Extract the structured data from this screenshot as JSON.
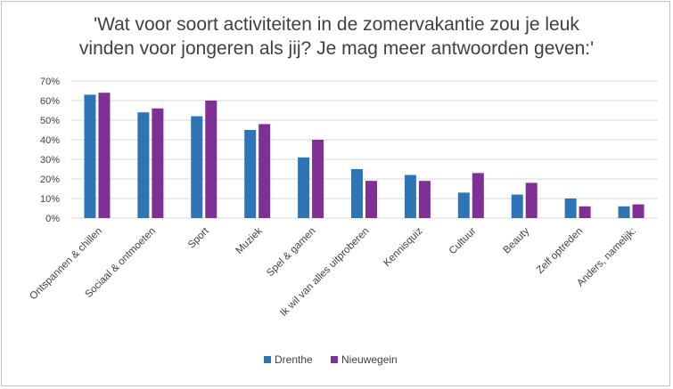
{
  "chart_data": {
    "type": "bar",
    "title_lines": [
      "'Wat voor soort activiteiten in de zomervakantie zou je leuk",
      "vinden voor jongeren als jij? Je mag meer antwoorden geven:'"
    ],
    "categories": [
      "Ontspannen & chillen",
      "Sociaal & ontmoeten",
      "Sport",
      "Muziek",
      "Spel & gamen",
      "Ik wil van alles uitproberen",
      "Kennisquiz",
      "Cultuur",
      "Beauty",
      "Zelf optreden",
      "Anders, namelijk:"
    ],
    "series": [
      {
        "name": "Drenthe",
        "color": "#2e75b6",
        "values": [
          63,
          54,
          52,
          45,
          31,
          25,
          22,
          13,
          12,
          10,
          6
        ]
      },
      {
        "name": "Nieuwegein",
        "color": "#7f3095",
        "values": [
          64,
          56,
          60,
          48,
          40,
          19,
          19,
          23,
          18,
          6,
          7
        ]
      }
    ],
    "yticks": [
      "0%",
      "10%",
      "20%",
      "30%",
      "40%",
      "50%",
      "60%",
      "70%"
    ],
    "ylim": [
      0,
      70
    ],
    "xlabel": "",
    "ylabel": "",
    "gridlines": true,
    "legend_position": "bottom-center"
  }
}
